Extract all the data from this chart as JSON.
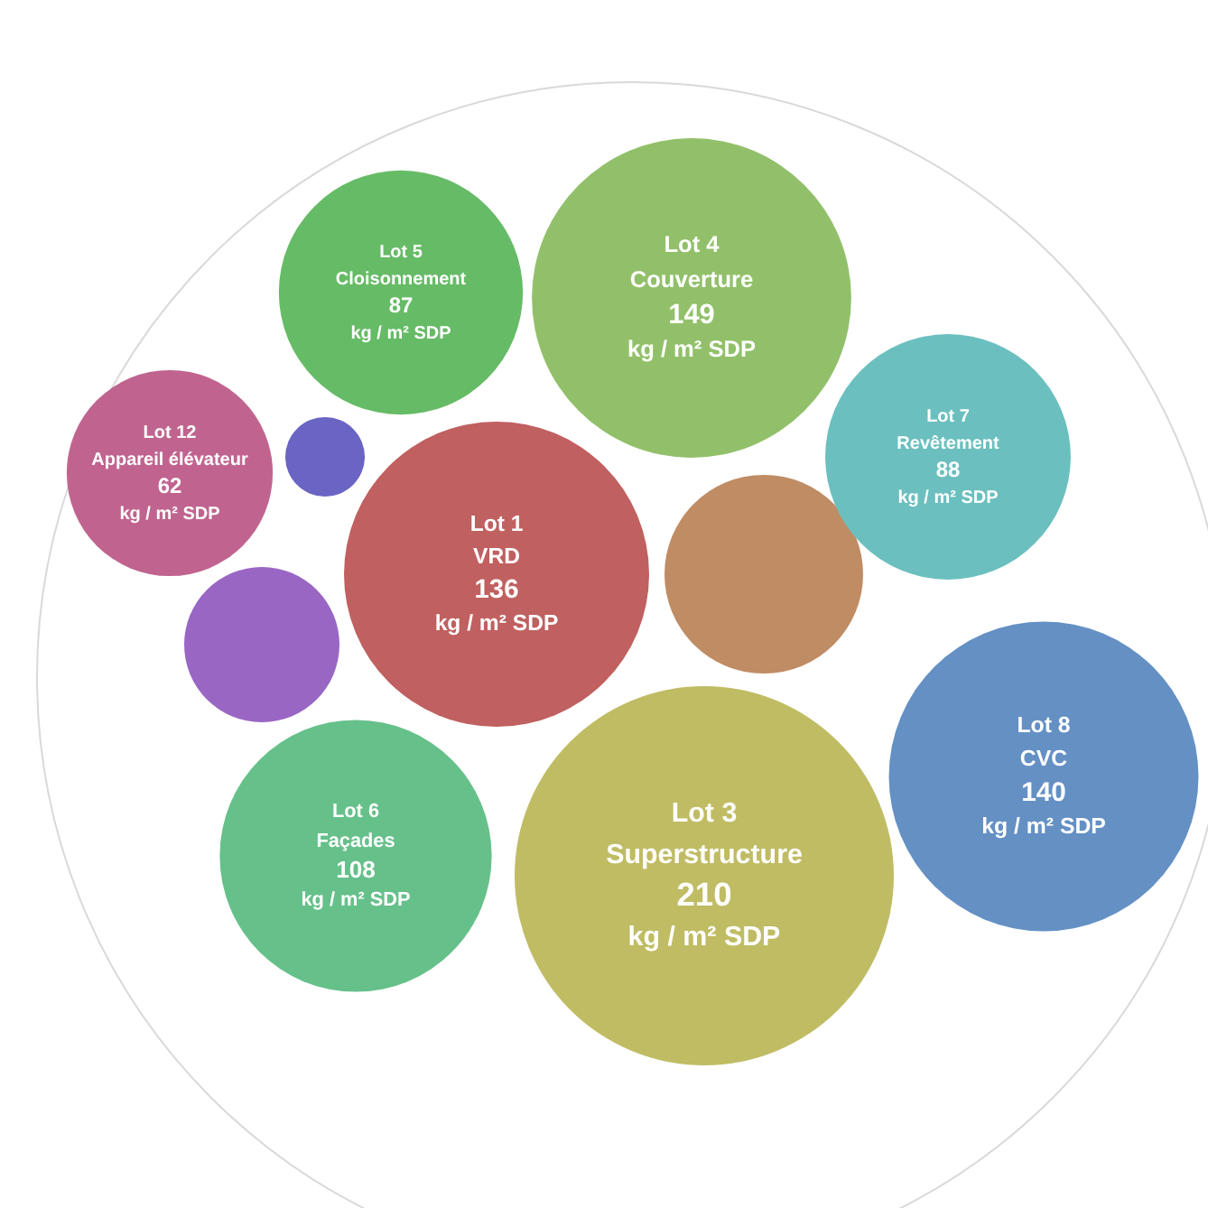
{
  "chart_data": {
    "type": "other",
    "categories": [
      "Lot 5\nCloisonnement",
      "Lot 4\nCouverture",
      "Lot 7\nRevêtement",
      "Lot 12\nAppareil élévateur",
      "Lot 1\nVRD",
      "Lot 8\nCVC",
      "Lot 6\nFaçades",
      "Lot 3\nSuperstructure"
    ],
    "values": [
      87,
      149,
      88,
      62,
      136,
      140,
      108,
      210
    ],
    "value_labels": [
      "87 kg / m² SDP",
      "149 kg / m² SDP",
      "88 kg / m² SDP",
      "62 kg / m² SDP",
      "136 kg / m² SDP",
      "140 kg / m² SDP",
      "108 kg / m² SDP",
      "210 kg / m² SDP"
    ],
    "colors": [
      "#66bb66",
      "#92c06a",
      "#6bbfbf",
      "#c0648f",
      "#c06060",
      "#6490c4",
      "#66c08a",
      "#c0bc64"
    ]
  }
}
